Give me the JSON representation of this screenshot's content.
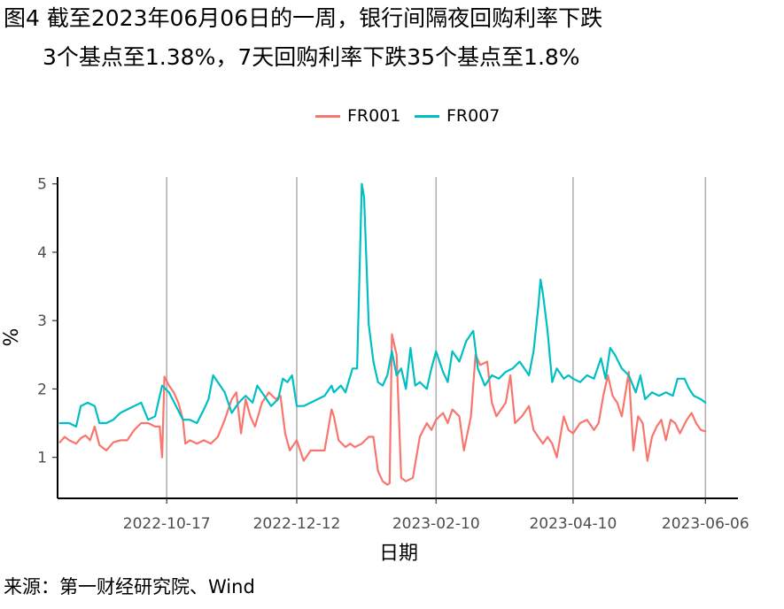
{
  "title": {
    "line1": "图4  截至2023年06月06日的一周，银行间隔夜回购利率下跌",
    "line2": "3个基点至1.38%，7天回购利率下跌35个基点至1.8%"
  },
  "source": "来源：第一财经研究院、Wind",
  "colors": {
    "FR001": "#F8766D",
    "FR007": "#00BFC4",
    "grid": "#b3b3b3",
    "axis": "#000000"
  },
  "chart_data": {
    "type": "line",
    "xlabel": "日期",
    "ylabel": "%",
    "xlim": [
      "2022-08-31",
      "2023-06-20"
    ],
    "ylim": [
      0.4,
      5.1
    ],
    "x_ticks": [
      "2022-10-17",
      "2022-12-12",
      "2023-02-10",
      "2023-04-10",
      "2023-06-06"
    ],
    "y_ticks": [
      1,
      2,
      3,
      4,
      5
    ],
    "grid": "vertical at x ticks",
    "legend": {
      "position": "top",
      "entries": [
        "FR001",
        "FR007"
      ]
    },
    "series": [
      {
        "name": "FR001",
        "points": [
          [
            "2022-09-01",
            1.22
          ],
          [
            "2022-09-03",
            1.3
          ],
          [
            "2022-09-05",
            1.25
          ],
          [
            "2022-09-08",
            1.2
          ],
          [
            "2022-09-10",
            1.28
          ],
          [
            "2022-09-12",
            1.32
          ],
          [
            "2022-09-14",
            1.25
          ],
          [
            "2022-09-16",
            1.45
          ],
          [
            "2022-09-18",
            1.18
          ],
          [
            "2022-09-21",
            1.1
          ],
          [
            "2022-09-24",
            1.22
          ],
          [
            "2022-09-27",
            1.25
          ],
          [
            "2022-09-30",
            1.25
          ],
          [
            "2022-10-03",
            1.4
          ],
          [
            "2022-10-06",
            1.5
          ],
          [
            "2022-10-09",
            1.5
          ],
          [
            "2022-10-12",
            1.45
          ],
          [
            "2022-10-14",
            1.45
          ],
          [
            "2022-10-15",
            1.0
          ],
          [
            "2022-10-16",
            2.18
          ],
          [
            "2022-10-18",
            2.05
          ],
          [
            "2022-10-20",
            1.95
          ],
          [
            "2022-10-22",
            1.8
          ],
          [
            "2022-10-24",
            1.55
          ],
          [
            "2022-10-25",
            1.2
          ],
          [
            "2022-10-27",
            1.25
          ],
          [
            "2022-10-30",
            1.2
          ],
          [
            "2022-11-02",
            1.25
          ],
          [
            "2022-11-05",
            1.2
          ],
          [
            "2022-11-08",
            1.3
          ],
          [
            "2022-11-11",
            1.55
          ],
          [
            "2022-11-14",
            1.85
          ],
          [
            "2022-11-16",
            1.95
          ],
          [
            "2022-11-18",
            1.35
          ],
          [
            "2022-11-20",
            1.85
          ],
          [
            "2022-11-22",
            1.6
          ],
          [
            "2022-11-24",
            1.45
          ],
          [
            "2022-11-27",
            1.8
          ],
          [
            "2022-11-30",
            1.95
          ],
          [
            "2022-12-03",
            1.85
          ],
          [
            "2022-12-05",
            1.9
          ],
          [
            "2022-12-07",
            1.35
          ],
          [
            "2022-12-09",
            1.1
          ],
          [
            "2022-12-12",
            1.25
          ],
          [
            "2022-12-15",
            0.95
          ],
          [
            "2022-12-18",
            1.1
          ],
          [
            "2022-12-21",
            1.1
          ],
          [
            "2022-12-24",
            1.1
          ],
          [
            "2022-12-27",
            1.7
          ],
          [
            "2022-12-28",
            1.6
          ],
          [
            "2022-12-30",
            1.25
          ],
          [
            "2023-01-02",
            1.15
          ],
          [
            "2023-01-04",
            1.2
          ],
          [
            "2023-01-06",
            1.15
          ],
          [
            "2023-01-09",
            1.2
          ],
          [
            "2023-01-12",
            1.3
          ],
          [
            "2023-01-14",
            1.3
          ],
          [
            "2023-01-16",
            0.8
          ],
          [
            "2023-01-18",
            0.65
          ],
          [
            "2023-01-20",
            0.6
          ],
          [
            "2023-01-21",
            0.62
          ],
          [
            "2023-01-22",
            2.8
          ],
          [
            "2023-01-24",
            2.5
          ],
          [
            "2023-01-26",
            0.7
          ],
          [
            "2023-01-28",
            0.65
          ],
          [
            "2023-01-31",
            0.7
          ],
          [
            "2023-02-03",
            1.3
          ],
          [
            "2023-02-06",
            1.5
          ],
          [
            "2023-02-08",
            1.4
          ],
          [
            "2023-02-10",
            1.55
          ],
          [
            "2023-02-13",
            1.65
          ],
          [
            "2023-02-15",
            1.5
          ],
          [
            "2023-02-17",
            1.7
          ],
          [
            "2023-02-20",
            1.6
          ],
          [
            "2023-02-22",
            1.1
          ],
          [
            "2023-02-25",
            1.6
          ],
          [
            "2023-02-27",
            2.5
          ],
          [
            "2023-03-01",
            2.35
          ],
          [
            "2023-03-04",
            2.4
          ],
          [
            "2023-03-06",
            1.8
          ],
          [
            "2023-03-08",
            1.6
          ],
          [
            "2023-03-10",
            1.7
          ],
          [
            "2023-03-12",
            1.8
          ],
          [
            "2023-03-14",
            2.2
          ],
          [
            "2023-03-16",
            1.5
          ],
          [
            "2023-03-19",
            1.6
          ],
          [
            "2023-03-22",
            1.75
          ],
          [
            "2023-03-24",
            1.4
          ],
          [
            "2023-03-27",
            1.25
          ],
          [
            "2023-03-28",
            1.2
          ],
          [
            "2023-03-30",
            1.3
          ],
          [
            "2023-04-01",
            1.2
          ],
          [
            "2023-04-03",
            1.0
          ],
          [
            "2023-04-06",
            1.6
          ],
          [
            "2023-04-08",
            1.4
          ],
          [
            "2023-04-10",
            1.35
          ],
          [
            "2023-04-13",
            1.5
          ],
          [
            "2023-04-16",
            1.55
          ],
          [
            "2023-04-19",
            1.4
          ],
          [
            "2023-04-21",
            1.5
          ],
          [
            "2023-04-23",
            1.9
          ],
          [
            "2023-04-25",
            2.2
          ],
          [
            "2023-04-27",
            1.9
          ],
          [
            "2023-04-29",
            1.8
          ],
          [
            "2023-05-01",
            1.6
          ],
          [
            "2023-05-04",
            2.25
          ],
          [
            "2023-05-06",
            1.1
          ],
          [
            "2023-05-08",
            1.6
          ],
          [
            "2023-05-10",
            1.5
          ],
          [
            "2023-05-12",
            0.95
          ],
          [
            "2023-05-14",
            1.3
          ],
          [
            "2023-05-16",
            1.45
          ],
          [
            "2023-05-18",
            1.55
          ],
          [
            "2023-05-20",
            1.25
          ],
          [
            "2023-05-22",
            1.55
          ],
          [
            "2023-05-24",
            1.5
          ],
          [
            "2023-05-26",
            1.35
          ],
          [
            "2023-05-29",
            1.55
          ],
          [
            "2023-05-31",
            1.65
          ],
          [
            "2023-06-02",
            1.5
          ],
          [
            "2023-06-04",
            1.4
          ],
          [
            "2023-06-06",
            1.38
          ]
        ]
      },
      {
        "name": "FR007",
        "points": [
          [
            "2022-09-01",
            1.5
          ],
          [
            "2022-09-05",
            1.5
          ],
          [
            "2022-09-08",
            1.45
          ],
          [
            "2022-09-10",
            1.75
          ],
          [
            "2022-09-13",
            1.8
          ],
          [
            "2022-09-16",
            1.75
          ],
          [
            "2022-09-18",
            1.5
          ],
          [
            "2022-09-21",
            1.5
          ],
          [
            "2022-09-24",
            1.55
          ],
          [
            "2022-09-27",
            1.65
          ],
          [
            "2022-09-30",
            1.7
          ],
          [
            "2022-10-03",
            1.75
          ],
          [
            "2022-10-06",
            1.8
          ],
          [
            "2022-10-09",
            1.55
          ],
          [
            "2022-10-12",
            1.6
          ],
          [
            "2022-10-15",
            2.05
          ],
          [
            "2022-10-18",
            1.95
          ],
          [
            "2022-10-21",
            1.75
          ],
          [
            "2022-10-24",
            1.55
          ],
          [
            "2022-10-27",
            1.55
          ],
          [
            "2022-10-30",
            1.5
          ],
          [
            "2022-11-02",
            1.7
          ],
          [
            "2022-11-04",
            1.85
          ],
          [
            "2022-11-06",
            2.2
          ],
          [
            "2022-11-08",
            2.1
          ],
          [
            "2022-11-11",
            1.95
          ],
          [
            "2022-11-14",
            1.65
          ],
          [
            "2022-11-17",
            1.8
          ],
          [
            "2022-11-20",
            1.9
          ],
          [
            "2022-11-23",
            1.8
          ],
          [
            "2022-11-25",
            2.05
          ],
          [
            "2022-11-28",
            1.9
          ],
          [
            "2022-12-01",
            1.75
          ],
          [
            "2022-12-04",
            1.85
          ],
          [
            "2022-12-06",
            2.15
          ],
          [
            "2022-12-08",
            2.1
          ],
          [
            "2022-12-10",
            2.2
          ],
          [
            "2022-12-12",
            1.75
          ],
          [
            "2022-12-15",
            1.75
          ],
          [
            "2022-12-18",
            1.8
          ],
          [
            "2022-12-21",
            1.85
          ],
          [
            "2022-12-24",
            1.9
          ],
          [
            "2022-12-27",
            2.05
          ],
          [
            "2022-12-28",
            1.95
          ],
          [
            "2022-12-31",
            2.05
          ],
          [
            "2023-01-02",
            1.95
          ],
          [
            "2023-01-05",
            2.3
          ],
          [
            "2023-01-07",
            2.3
          ],
          [
            "2023-01-09",
            5.0
          ],
          [
            "2023-01-10",
            4.8
          ],
          [
            "2023-01-12",
            2.95
          ],
          [
            "2023-01-14",
            2.4
          ],
          [
            "2023-01-16",
            2.1
          ],
          [
            "2023-01-18",
            2.05
          ],
          [
            "2023-01-20",
            2.2
          ],
          [
            "2023-01-22",
            2.55
          ],
          [
            "2023-01-24",
            2.2
          ],
          [
            "2023-01-26",
            2.3
          ],
          [
            "2023-01-28",
            2.0
          ],
          [
            "2023-01-30",
            2.6
          ],
          [
            "2023-02-01",
            2.05
          ],
          [
            "2023-02-03",
            2.1
          ],
          [
            "2023-02-06",
            2.0
          ],
          [
            "2023-02-08",
            2.3
          ],
          [
            "2023-02-10",
            2.55
          ],
          [
            "2023-02-13",
            2.25
          ],
          [
            "2023-02-15",
            2.1
          ],
          [
            "2023-02-17",
            2.55
          ],
          [
            "2023-02-20",
            2.4
          ],
          [
            "2023-02-23",
            2.7
          ],
          [
            "2023-02-26",
            2.85
          ],
          [
            "2023-02-28",
            2.3
          ],
          [
            "2023-03-03",
            2.05
          ],
          [
            "2023-03-06",
            2.2
          ],
          [
            "2023-03-09",
            2.15
          ],
          [
            "2023-03-12",
            2.25
          ],
          [
            "2023-03-15",
            2.3
          ],
          [
            "2023-03-18",
            2.4
          ],
          [
            "2023-03-20",
            2.3
          ],
          [
            "2023-03-22",
            2.2
          ],
          [
            "2023-03-24",
            2.55
          ],
          [
            "2023-03-26",
            3.2
          ],
          [
            "2023-03-27",
            3.6
          ],
          [
            "2023-03-28",
            3.4
          ],
          [
            "2023-03-30",
            2.85
          ],
          [
            "2023-04-01",
            2.1
          ],
          [
            "2023-04-03",
            2.3
          ],
          [
            "2023-04-06",
            2.15
          ],
          [
            "2023-04-08",
            2.2
          ],
          [
            "2023-04-10",
            2.15
          ],
          [
            "2023-04-13",
            2.1
          ],
          [
            "2023-04-16",
            2.2
          ],
          [
            "2023-04-19",
            2.15
          ],
          [
            "2023-04-22",
            2.45
          ],
          [
            "2023-04-24",
            2.15
          ],
          [
            "2023-04-26",
            2.6
          ],
          [
            "2023-04-28",
            2.5
          ],
          [
            "2023-05-01",
            2.3
          ],
          [
            "2023-05-04",
            2.2
          ],
          [
            "2023-05-07",
            1.95
          ],
          [
            "2023-05-09",
            2.2
          ],
          [
            "2023-05-11",
            1.85
          ],
          [
            "2023-05-14",
            1.95
          ],
          [
            "2023-05-17",
            1.9
          ],
          [
            "2023-05-20",
            1.95
          ],
          [
            "2023-05-23",
            1.9
          ],
          [
            "2023-05-25",
            2.15
          ],
          [
            "2023-05-28",
            2.15
          ],
          [
            "2023-05-30",
            2.0
          ],
          [
            "2023-06-01",
            1.9
          ],
          [
            "2023-06-04",
            1.85
          ],
          [
            "2023-06-06",
            1.8
          ]
        ]
      }
    ]
  }
}
